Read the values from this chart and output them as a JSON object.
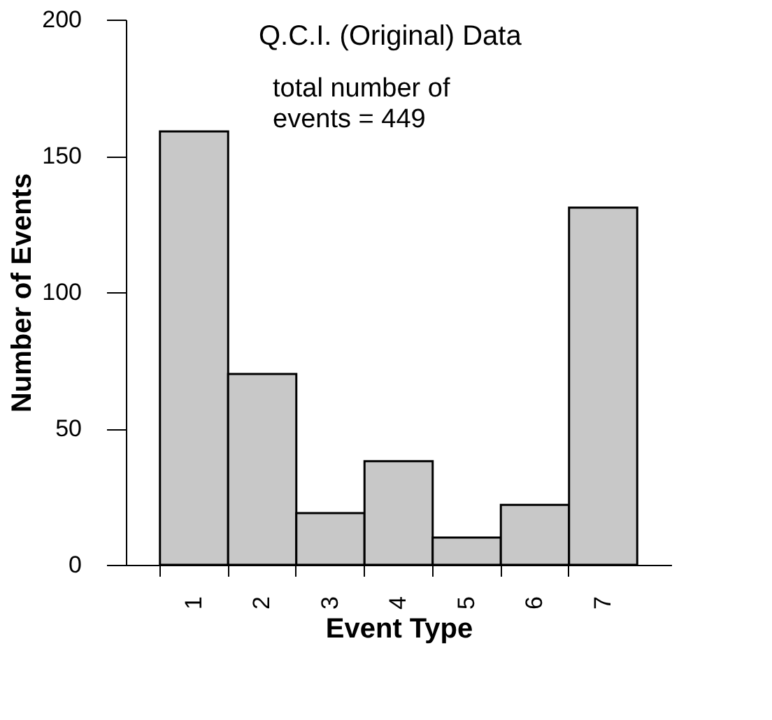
{
  "chart_data": {
    "type": "bar",
    "title": "Q.C.I. (Original) Data",
    "annotations": [
      "total number of events = 449"
    ],
    "xlabel": "Event Type",
    "ylabel": "Number of Events",
    "categories": [
      "1",
      "2",
      "3",
      "4",
      "5",
      "6",
      "7"
    ],
    "values": [
      159,
      70,
      19,
      38,
      10,
      22,
      131
    ],
    "color": "#c8c8c8",
    "ylim": [
      0,
      200
    ],
    "yticks": [
      0,
      50,
      100,
      150,
      200
    ],
    "grid": false
  }
}
